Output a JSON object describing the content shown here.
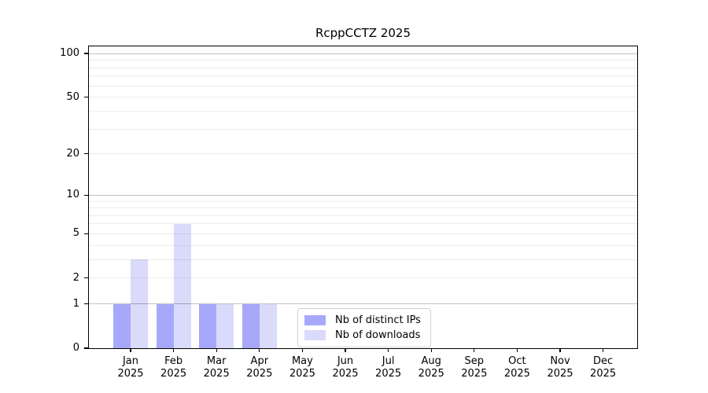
{
  "chart_data": {
    "type": "bar",
    "title": "RcppCCTZ 2025",
    "year": "2025",
    "months": [
      "Jan",
      "Feb",
      "Mar",
      "Apr",
      "May",
      "Jun",
      "Jul",
      "Aug",
      "Sep",
      "Oct",
      "Nov",
      "Dec"
    ],
    "categories": [
      "Jan 2025",
      "Feb 2025",
      "Mar 2025",
      "Apr 2025",
      "May 2025",
      "Jun 2025",
      "Jul 2025",
      "Aug 2025",
      "Sep 2025",
      "Oct 2025",
      "Nov 2025",
      "Dec 2025"
    ],
    "series": [
      {
        "name": "Nb of distinct IPs",
        "color": "#a8a8fa",
        "values": [
          1,
          1,
          1,
          1,
          0,
          0,
          0,
          0,
          0,
          0,
          0,
          0
        ]
      },
      {
        "name": "Nb of downloads",
        "color": "#dadafa",
        "values": [
          3,
          6,
          1,
          1,
          0,
          0,
          0,
          0,
          0,
          0,
          0,
          0
        ]
      }
    ],
    "y_axis": {
      "scale": "log1p",
      "ylim": [
        0,
        113
      ],
      "tick_values": [
        0,
        1,
        2,
        5,
        10,
        20,
        50,
        100
      ],
      "tick_labels": [
        "0",
        "1",
        "2",
        "5",
        "10",
        "20",
        "50",
        "100"
      ],
      "major_grid_values": [
        1,
        10,
        100
      ],
      "minor_grid_values": [
        2,
        3,
        4,
        5,
        6,
        7,
        8,
        9,
        20,
        30,
        40,
        50,
        60,
        70,
        80,
        90
      ]
    },
    "legend": {
      "entries": [
        "Nb of distinct IPs",
        "Nb of downloads"
      ],
      "position": "lower center"
    },
    "grid": true,
    "colors": {
      "axis": "#000000",
      "grid_major": "rgba(0,0,0,0.24)",
      "grid_minor": "rgba(0,0,0,0.075)",
      "background": "#ffffff"
    }
  }
}
